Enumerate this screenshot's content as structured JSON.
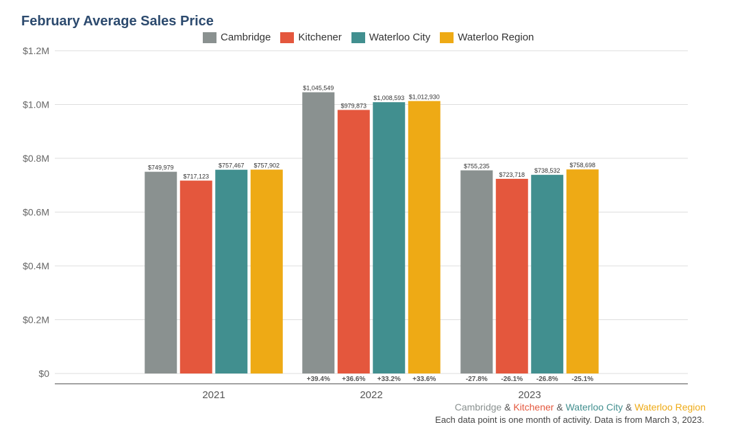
{
  "colors": {
    "cambridge": "#8a9190",
    "kitchener": "#e4573d",
    "waterloo_city": "#418f8f",
    "waterloo_region": "#eeaa15"
  },
  "chart_data": {
    "type": "bar",
    "title": "February Average Sales Price",
    "categories": [
      "2021",
      "2022",
      "2023"
    ],
    "ylim": [
      0,
      1200000
    ],
    "y_ticks": [
      {
        "value": 0,
        "label": "$0"
      },
      {
        "value": 200000,
        "label": "$0.2M"
      },
      {
        "value": 400000,
        "label": "$0.4M"
      },
      {
        "value": 600000,
        "label": "$0.6M"
      },
      {
        "value": 800000,
        "label": "$0.8M"
      },
      {
        "value": 1000000,
        "label": "$1.0M"
      },
      {
        "value": 1200000,
        "label": "$1.2M"
      }
    ],
    "grid": true,
    "legend_position": "top-center",
    "series": [
      {
        "name": "Cambridge",
        "color": "#8a9190",
        "values": [
          749979,
          1045549,
          755235
        ],
        "labels": [
          "$749,979",
          "$1,045,549",
          "$755,235"
        ],
        "changes": [
          "",
          "+39.4%",
          "-27.8%"
        ]
      },
      {
        "name": "Kitchener",
        "color": "#e4573d",
        "values": [
          717123,
          979873,
          723718
        ],
        "labels": [
          "$717,123",
          "$979,873",
          "$723,718"
        ],
        "changes": [
          "",
          "+36.6%",
          "-26.1%"
        ]
      },
      {
        "name": "Waterloo City",
        "color": "#418f8f",
        "values": [
          757467,
          1008593,
          738532
        ],
        "labels": [
          "$757,467",
          "$1,008,593",
          "$738,532"
        ],
        "changes": [
          "",
          "+33.2%",
          "-26.8%"
        ]
      },
      {
        "name": "Waterloo Region",
        "color": "#eeaa15",
        "values": [
          757902,
          1012930,
          758698
        ],
        "labels": [
          "$757,902",
          "$1,012,930",
          "$758,698"
        ],
        "changes": [
          "",
          "+33.6%",
          "-25.1%"
        ]
      }
    ]
  },
  "footer": {
    "regions": [
      {
        "text": "Cambridge",
        "color": "#8a9190"
      },
      {
        "text": " & ",
        "color": "#555555"
      },
      {
        "text": "Kitchener",
        "color": "#e4573d"
      },
      {
        "text": " & ",
        "color": "#555555"
      },
      {
        "text": "Waterloo City",
        "color": "#418f8f"
      },
      {
        "text": " & ",
        "color": "#555555"
      },
      {
        "text": "Waterloo Region",
        "color": "#eeaa15"
      }
    ],
    "note": "Each data point is one month of activity. Data is from March 3, 2023."
  }
}
